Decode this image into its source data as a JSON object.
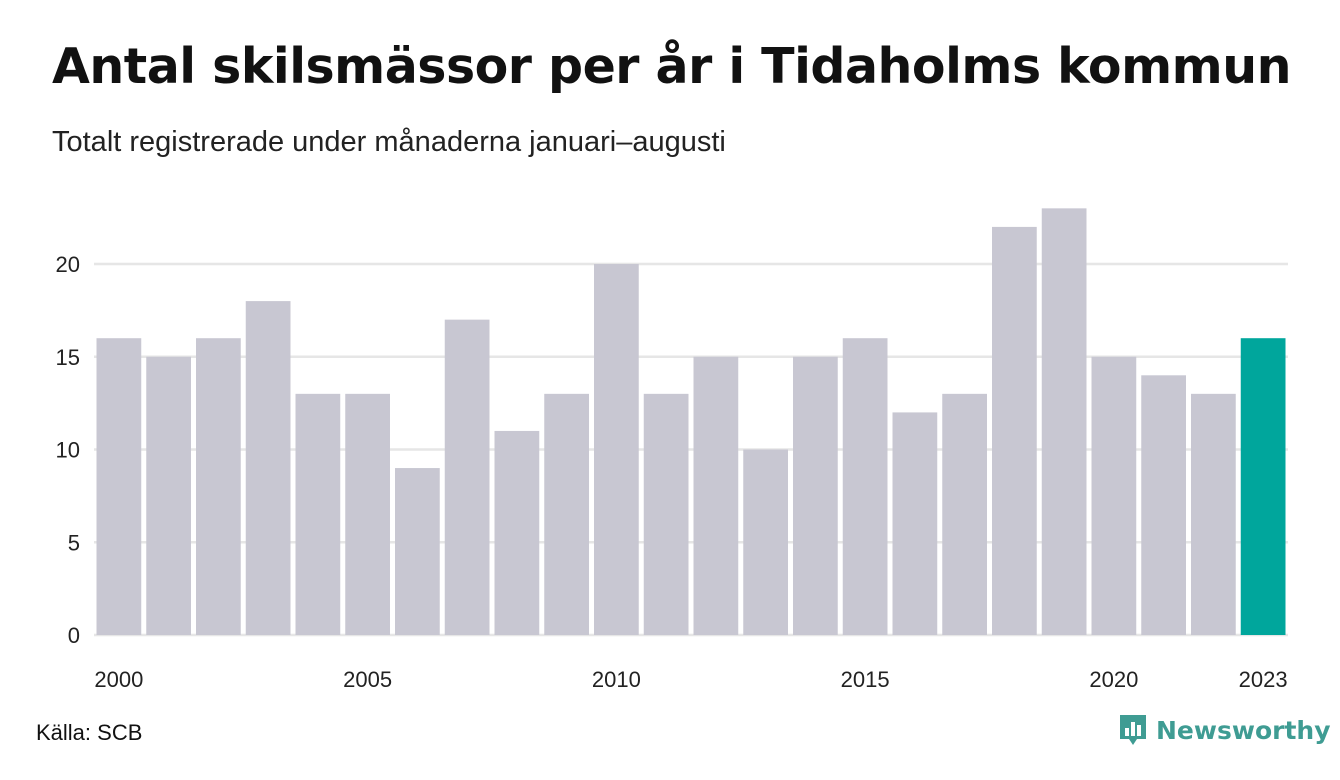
{
  "header": {
    "title": "Antal skilsmässor per år i Tidaholms kommun",
    "subtitle": "Totalt registrerade under månaderna januari–augusti"
  },
  "footer": {
    "source": "Källa: SCB",
    "brand": "Newsworthy",
    "brand_icon": "newsworthy-logo-icon"
  },
  "colors": {
    "bar": "#c8c7d2",
    "highlight": "#00a69c",
    "grid": "#e6e6e6",
    "brand": "#3f9c93"
  },
  "chart_data": {
    "type": "bar",
    "title": "Antal skilsmässor per år i Tidaholms kommun",
    "subtitle": "Totalt registrerade under månaderna januari–augusti",
    "categories": [
      "2000",
      "2001",
      "2002",
      "2003",
      "2004",
      "2005",
      "2006",
      "2007",
      "2008",
      "2009",
      "2010",
      "2011",
      "2012",
      "2013",
      "2014",
      "2015",
      "2016",
      "2017",
      "2018",
      "2019",
      "2020",
      "2021",
      "2022",
      "2023"
    ],
    "values": [
      16,
      15,
      16,
      18,
      13,
      13,
      9,
      17,
      11,
      13,
      20,
      13,
      15,
      10,
      15,
      16,
      12,
      13,
      22,
      23,
      15,
      14,
      13,
      16
    ],
    "highlight": "2023",
    "x_tick_labels": [
      "2000",
      "2005",
      "2010",
      "2015",
      "2020",
      "2023"
    ],
    "y_ticks": [
      0,
      5,
      10,
      15,
      20
    ],
    "ylim": [
      0,
      23
    ],
    "xlabel": "",
    "ylabel": "",
    "grid": true,
    "legend": "none"
  }
}
